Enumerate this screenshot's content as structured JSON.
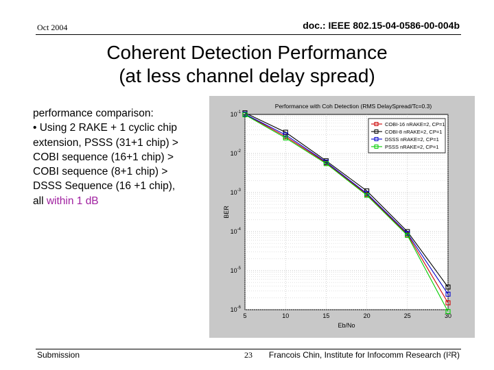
{
  "header": {
    "date": "Oct 2004",
    "doc_id": "doc.: IEEE 802.15-04-0586-00-004b"
  },
  "slide": {
    "title_line1": "Coherent Detection Performance",
    "title_line2": "(at less channel delay spread)",
    "text_lines": [
      "performance comparison:",
      "• Using 2 RAKE + 1 cyclic chip",
      "extension, PSSS (31+1 chip) >",
      "COBI sequence (16+1 chip) >",
      "COBI sequence (8+1 chip) >",
      "DSSS Sequence (16 +1 chip),"
    ],
    "last_line_prefix": "all ",
    "last_line_highlight": "within 1 dB",
    "highlight_color": "#a020a0"
  },
  "footer": {
    "left": "Submission",
    "page": "23",
    "right": "Francois Chin, Institute for Infocomm Research (I²R)"
  },
  "chart_data": {
    "type": "line",
    "title": "Performance with Coh Detection (RMS DelaySpread/Tc=0.3)",
    "xlabel": "Eb/No",
    "ylabel": "BER",
    "y_scale": "log",
    "xlim": [
      5,
      30
    ],
    "ylim_exponent": [
      -6,
      -1
    ],
    "x_ticks": [
      5,
      10,
      15,
      20,
      25,
      30
    ],
    "y_ticks_exponent": [
      -1,
      -2,
      -3,
      -4,
      -5,
      -6
    ],
    "grid": true,
    "legend_position": "top-right",
    "x": [
      5,
      10,
      15,
      20,
      25,
      30
    ],
    "series": [
      {
        "name": "COBI-16 nRAKE=2, CP=1",
        "color": "#cc0000",
        "values": [
          0.102,
          0.027,
          0.0058,
          0.0009,
          8.5e-05,
          1.5e-06
        ]
      },
      {
        "name": "COBI-8 nRAKE=2, CP=1",
        "color": "#000000",
        "values": [
          0.11,
          0.035,
          0.0065,
          0.0011,
          0.0001,
          3.8e-06
        ]
      },
      {
        "name": "DSSS nRAKE=2, CP=1",
        "color": "#0000cc",
        "values": [
          0.102,
          0.03,
          0.006,
          0.00095,
          9e-05,
          2.5e-06
        ]
      },
      {
        "name": "PSSS nRAKE=2, CP=1",
        "color": "#00cc00",
        "values": [
          0.098,
          0.025,
          0.0055,
          0.00085,
          8e-05,
          9e-07
        ]
      }
    ]
  }
}
